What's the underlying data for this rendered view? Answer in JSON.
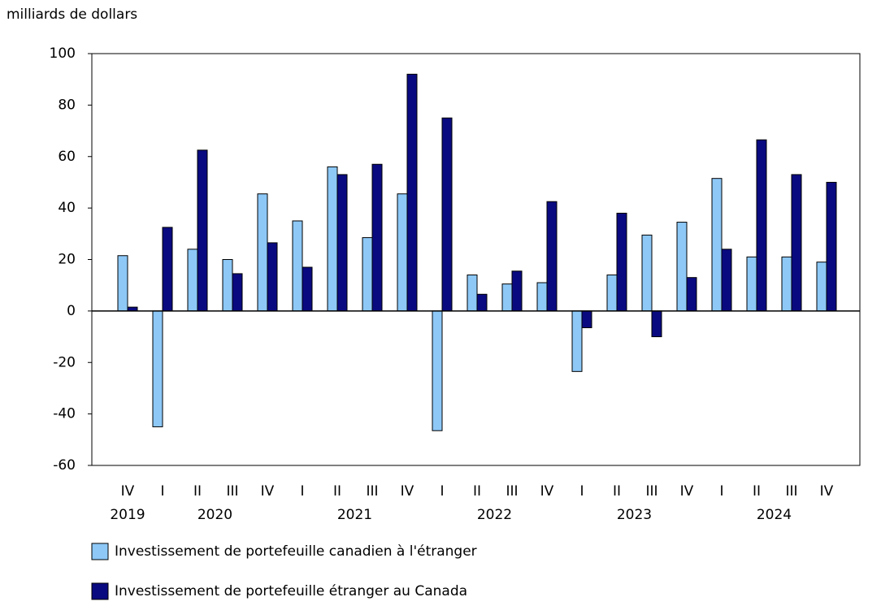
{
  "chart_data": {
    "type": "bar",
    "y_label": "milliards de dollars",
    "categories": [
      "IV",
      "I",
      "II",
      "III",
      "IV",
      "I",
      "II",
      "III",
      "IV",
      "I",
      "II",
      "III",
      "IV",
      "I",
      "II",
      "III",
      "IV",
      "I",
      "II",
      "III",
      "IV"
    ],
    "category_groups": [
      {
        "label": "2019",
        "size": 1
      },
      {
        "label": "2020",
        "size": 4
      },
      {
        "label": "2021",
        "size": 4
      },
      {
        "label": "2022",
        "size": 4
      },
      {
        "label": "2023",
        "size": 4
      },
      {
        "label": "2024",
        "size": 4
      }
    ],
    "series": [
      {
        "name": "Investissement de portefeuille canadien à l'étranger",
        "color": "#8dc8f7",
        "values": [
          21.5,
          -45,
          24,
          20,
          45.5,
          35,
          56,
          28.5,
          45.5,
          -46.5,
          14,
          10.5,
          11,
          -23.5,
          14,
          29.5,
          34.5,
          51.5,
          21,
          21,
          19
        ]
      },
      {
        "name": "Investissement de portefeuille étranger au Canada",
        "color": "#0a0a80",
        "values": [
          1.5,
          32.5,
          62.5,
          14.5,
          26.5,
          17,
          53,
          57,
          92,
          75,
          6.5,
          15.5,
          42.5,
          -6.5,
          38,
          -10,
          13,
          24,
          66.5,
          53,
          50
        ]
      }
    ],
    "ylim": [
      -60,
      100
    ],
    "yticks": [
      -60,
      -40,
      -20,
      0,
      20,
      40,
      60,
      80,
      100
    ]
  }
}
